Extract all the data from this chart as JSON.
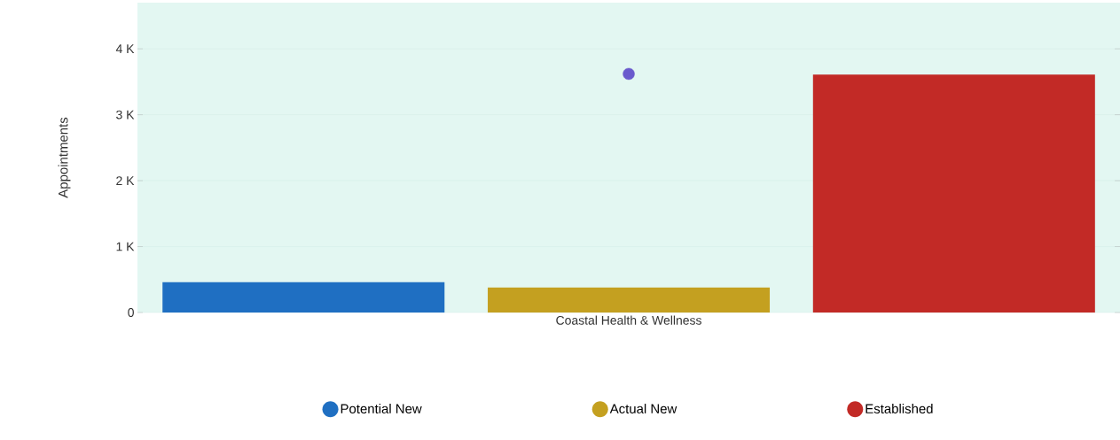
{
  "chart_data": {
    "type": "bar",
    "ylabel": "Appointments",
    "categories": [
      "Coastal Health & Wellness"
    ],
    "series": [
      {
        "name": "Potential New",
        "color": "#1f6fc2",
        "values": [
          460
        ]
      },
      {
        "name": "Actual New",
        "color": "#c4a020",
        "values": [
          380
        ]
      },
      {
        "name": "Established",
        "color": "#c22a26",
        "values": [
          3610
        ]
      },
      {
        "type": "scatter",
        "color": "#6a5acd",
        "x": [
          "Coastal Health & Wellness"
        ],
        "values": [
          3620
        ]
      }
    ],
    "ylim": [
      0,
      4700
    ],
    "yticks": [
      0,
      {
        "value": 1000,
        "label": "1 K"
      },
      {
        "value": 2000,
        "label": "2 K"
      },
      {
        "value": 3000,
        "label": "3 K"
      },
      {
        "value": 4000,
        "label": "4 K"
      }
    ],
    "grid": "y",
    "legend": "bottom"
  }
}
